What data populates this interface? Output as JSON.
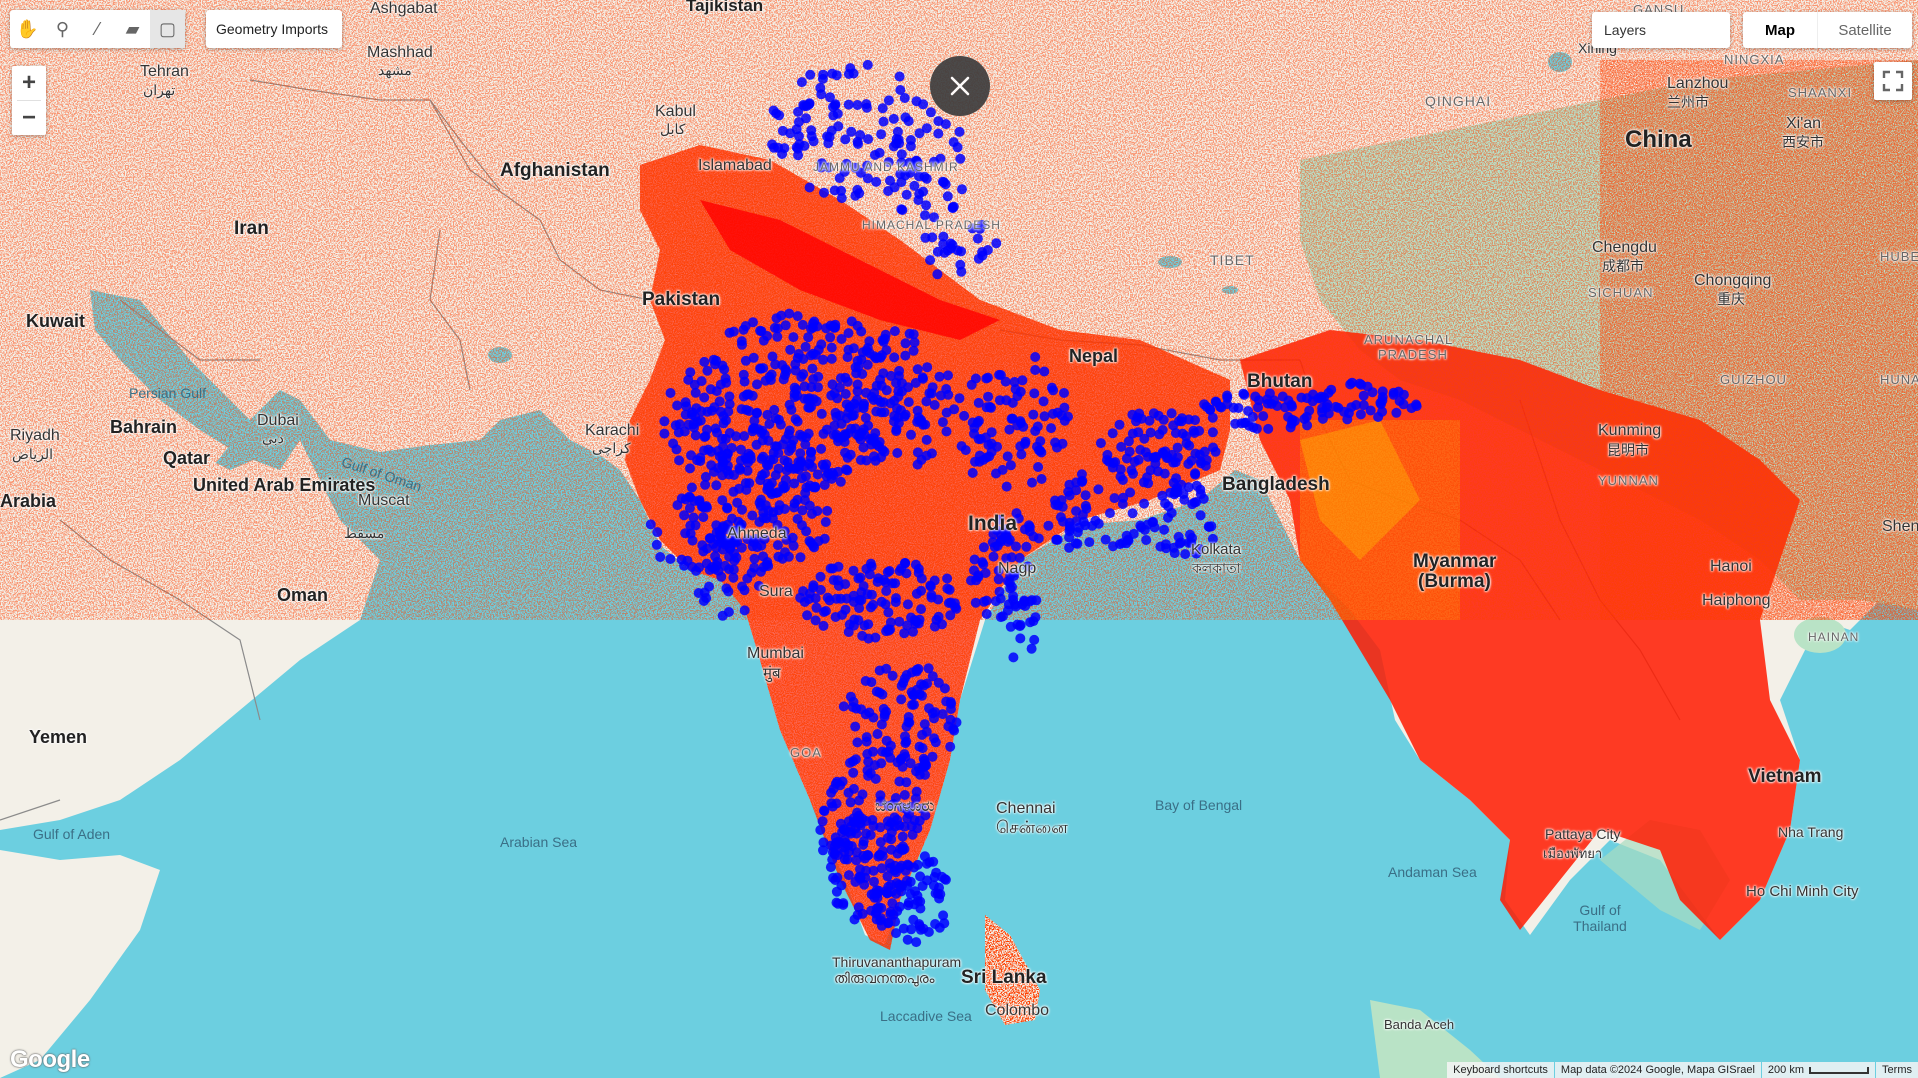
{
  "toolbar": {
    "tools": [
      {
        "name": "pan-tool",
        "icon": "hand-icon",
        "glyph": "✋"
      },
      {
        "name": "point-tool",
        "icon": "marker-icon",
        "glyph": "⚲"
      },
      {
        "name": "line-tool",
        "icon": "polyline-icon",
        "glyph": "⁄"
      },
      {
        "name": "polygon-tool",
        "icon": "polygon-icon",
        "glyph": "▰"
      },
      {
        "name": "rectangle-tool",
        "icon": "rectangle-icon",
        "glyph": "▢"
      }
    ],
    "geometry_imports": "Geometry Imports"
  },
  "zoom": {
    "in": "+",
    "out": "−"
  },
  "layers_label": "Layers",
  "map_type": {
    "map": "Map",
    "satellite": "Satellite",
    "selected": "Map"
  },
  "attribution": {
    "shortcuts": "Keyboard shortcuts",
    "data": "Map data ©2024 Google, Mapa GISrael",
    "scale": "200 km",
    "terms": "Terms"
  },
  "google_logo": "Google",
  "colors": {
    "water": "#6ccfe0",
    "land": "#f3f0e8",
    "vegetation": "#a8dcc0",
    "heat_high": "#ff1a00",
    "heat_peak": "#ffd400",
    "points": "#0000ff"
  },
  "labels": {
    "tajikistan": "Tajikistan",
    "ashgabat": "Ashgabat",
    "mashhad": "Mashhad",
    "mashhad_local": "مشهد",
    "tehran": "Tehran",
    "tehran_local": "تهران",
    "kabul": "Kabul",
    "kabul_local": "کابل",
    "afghanistan": "Afghanistan",
    "islamabad": "Islamabad",
    "iran": "Iran",
    "pakistan": "Pakistan",
    "kuwait": "Kuwait",
    "persian_gulf": "Persian Gulf",
    "bahrain": "Bahrain",
    "dubai": "Dubai",
    "dubai_local": "دبي",
    "riyadh": "Riyadh",
    "riyadh_local": "الرياض",
    "qatar": "Qatar",
    "karachi": "Karachi",
    "karachi_local": "کراچی",
    "gulf_of_oman": "Gulf of Oman",
    "arabia": "Arabia",
    "uae": "United Arab Emirates",
    "muscat": "Muscat",
    "muscat_local": "مسقط",
    "oman": "Oman",
    "yemen": "Yemen",
    "gulf_of_aden": "Gulf of Aden",
    "arabian_sea": "Arabian Sea",
    "laccadive_sea": "Laccadive Sea",
    "thiruvananthapuram": "Thiruvananthapuram",
    "thiruvananthapuram_local": "തിരുവനന്തപുരം",
    "sri_lanka": "Sri Lanka",
    "colombo": "Colombo",
    "chennai": "Chennai",
    "chennai_local": "சென்னை",
    "bengaluru_local": "ಬೆಂಗಳೂರು",
    "bay_of_bengal": "Bay of Bengal",
    "andaman_sea": "Andaman Sea",
    "banda_aceh": "Banda Aceh",
    "gulf_of_thailand": "Gulf of Thailand",
    "pattaya": "Pattaya City",
    "pattaya_local": "เมืองพัทยา",
    "vietnam": "Vietnam",
    "nha_trang": "Nha Trang",
    "ho_chi_minh": "Ho Chi Minh City",
    "hainan": "HAINAN",
    "haiphong": "Haiphong",
    "hanoi": "Hanoi",
    "myanmar": "Myanmar",
    "myanmar_sub": "(Burma)",
    "bangladesh": "Bangladesh",
    "kolkata": "Kolkata",
    "kolkata_local": "কলকাতা",
    "bhutan": "Bhutan",
    "nepal": "Nepal",
    "tibet": "TIBET",
    "qinghai": "QINGHAI",
    "china": "China",
    "lanzhou": "Lanzhou",
    "lanzhou_local": "兰州市",
    "xian": "Xi'an",
    "xian_local": "西安市",
    "shaanxi": "SHAANXI",
    "ningxia": "NINGXIA",
    "gansu": "GANSU",
    "xining": "Xining",
    "chengdu": "Chengdu",
    "chengdu_local": "成都市",
    "sichuan": "SICHUAN",
    "chongqing": "Chongqing",
    "chongqing_local": "重庆",
    "hubei": "HUBEI",
    "hunan": "HUNAN",
    "guizhou": "GUIZHOU",
    "kunming": "Kunming",
    "kunming_local": "昆明市",
    "yunnan": "YUNNAN",
    "arunachal": "ARUNACHAL",
    "pradesh": "PRADESH",
    "india": "India",
    "mumbai": "Mumbai",
    "mumbai_local": "मुंब",
    "surat": "Sura",
    "ahmedabad": "Ahmeda",
    "nagpur": "Nagp",
    "goa": "GOA",
    "jammu_kashmir": "JAMMU AND KASHMIR",
    "himachal": "HIMACHAL PRADESH",
    "shenzhen": "Shenz"
  }
}
